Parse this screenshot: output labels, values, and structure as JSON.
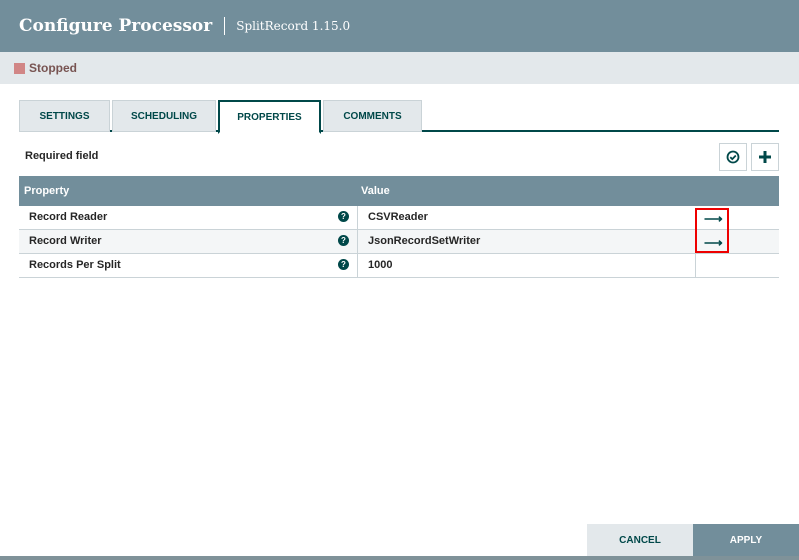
{
  "header": {
    "title": "Configure Processor",
    "subtitle": "SplitRecord 1.15.0"
  },
  "status": {
    "label": "Stopped",
    "color": "#d18686"
  },
  "tabs": [
    {
      "label": "SETTINGS"
    },
    {
      "label": "SCHEDULING"
    },
    {
      "label": "PROPERTIES",
      "active": true
    },
    {
      "label": "COMMENTS"
    }
  ],
  "required_label": "Required field",
  "toolbar": {
    "verify_icon": "check-circle-icon",
    "add_icon": "plus-icon"
  },
  "table": {
    "columns": [
      "Property",
      "Value"
    ],
    "rows": [
      {
        "property": "Record Reader",
        "value": "CSVReader",
        "has_link": true
      },
      {
        "property": "Record Writer",
        "value": "JsonRecordSetWriter",
        "has_link": true
      },
      {
        "property": "Records Per Split",
        "value": "1000",
        "has_link": false
      }
    ]
  },
  "footer": {
    "cancel": "CANCEL",
    "apply": "APPLY"
  },
  "colors": {
    "header": "#728e9b",
    "accent": "#004849",
    "highlight": "#e00000"
  }
}
